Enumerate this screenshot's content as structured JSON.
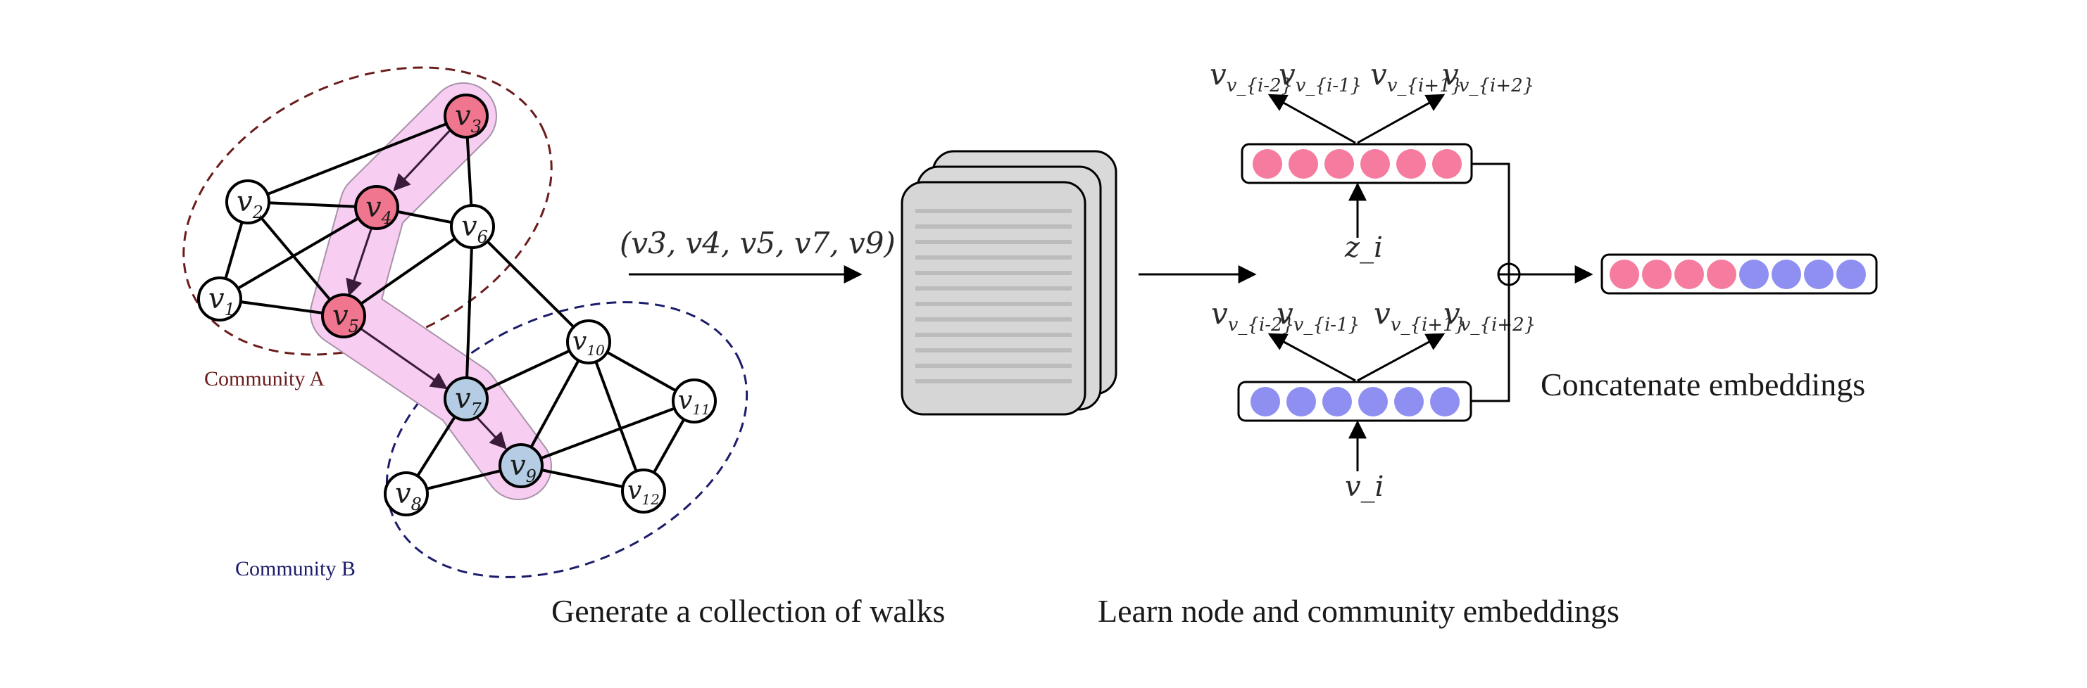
{
  "graph": {
    "nodes": [
      {
        "id": "v1",
        "base": "v",
        "sub": "1"
      },
      {
        "id": "v2",
        "base": "v",
        "sub": "2"
      },
      {
        "id": "v3",
        "base": "v",
        "sub": "3"
      },
      {
        "id": "v4",
        "base": "v",
        "sub": "4"
      },
      {
        "id": "v5",
        "base": "v",
        "sub": "5"
      },
      {
        "id": "v6",
        "base": "v",
        "sub": "6"
      },
      {
        "id": "v7",
        "base": "v",
        "sub": "7"
      },
      {
        "id": "v8",
        "base": "v",
        "sub": "8"
      },
      {
        "id": "v9",
        "base": "v",
        "sub": "9"
      },
      {
        "id": "v10",
        "base": "v",
        "sub": "10"
      },
      {
        "id": "v11",
        "base": "v",
        "sub": "11"
      },
      {
        "id": "v12",
        "base": "v",
        "sub": "12"
      }
    ],
    "community_a": {
      "label": "Community A",
      "color": "#6b1c1c"
    },
    "community_b": {
      "label": "Community B",
      "color": "#1c1c6b"
    },
    "walk_highlight_color": "#f7cdf2",
    "community_a_node_color": "#f0758e",
    "community_b_node_color": "#b4cce4"
  },
  "walk_sequence": {
    "text": "(v3, v4, v5, v7, v9)"
  },
  "captions": {
    "generate": "Generate a collection of walks",
    "learn": "Learn node and community embeddings",
    "concatenate": "Concatenate embeddings"
  },
  "community_model": {
    "outputs": [
      "v_{i-2}",
      "v_{i-1}",
      "v_{i+1}",
      "v_{i+2}"
    ],
    "input": "z_i",
    "color": "#f57c9e",
    "cells": 6
  },
  "node_model": {
    "outputs": [
      "v_{i-2}",
      "v_{i-1}",
      "v_{i+1}",
      "v_{i+2}"
    ],
    "input": "v_i",
    "color": "#8f8ff2",
    "cells": 6
  },
  "concat_vector": {
    "pink_cells": 4,
    "blue_cells": 4
  }
}
